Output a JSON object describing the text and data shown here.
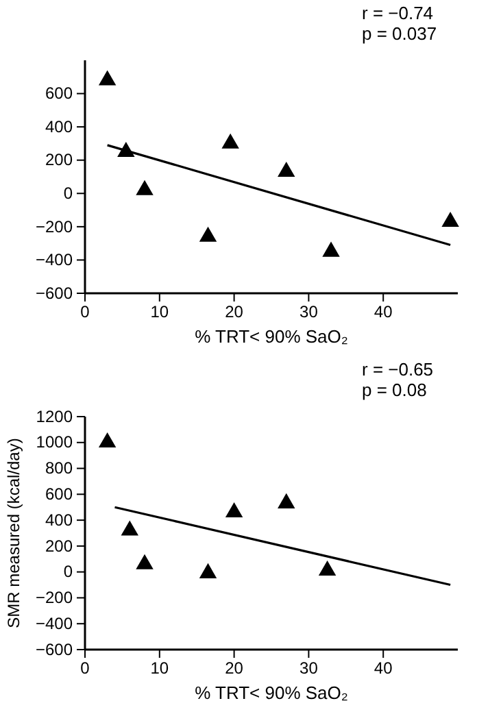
{
  "chart_data": [
    {
      "type": "scatter",
      "xlabel": "% TRT< 90% SaO₂",
      "xlim": [
        0,
        50
      ],
      "xticks": [
        0,
        10,
        20,
        30,
        40
      ],
      "ylim": [
        -600,
        800
      ],
      "yticks": [
        -600,
        -400,
        -200,
        0,
        200,
        400,
        600
      ],
      "annotations": [
        "r = −0.74",
        "p = 0.037"
      ],
      "series": [
        {
          "color": "#000000",
          "marker": "triangle",
          "x": [
            3,
            5.5,
            8,
            16.5,
            19.5,
            27,
            33,
            49
          ],
          "values": [
            680,
            250,
            20,
            -260,
            300,
            130,
            -350,
            -170
          ]
        },
        {
          "type": "line",
          "color": "#000000",
          "marker": "none",
          "x": [
            3,
            49
          ],
          "values": [
            290,
            -310
          ]
        }
      ]
    },
    {
      "type": "scatter",
      "ylabel": "SMR measured (kcal/day)",
      "xlabel": "% TRT< 90% SaO₂",
      "xlim": [
        0,
        50
      ],
      "xticks": [
        0,
        10,
        20,
        30,
        40
      ],
      "ylim": [
        -600,
        1200
      ],
      "yticks": [
        -600,
        -400,
        -200,
        0,
        200,
        400,
        600,
        800,
        1000,
        1200
      ],
      "annotations": [
        "r = −0.65",
        "p = 0.08"
      ],
      "series": [
        {
          "color": "#000000",
          "marker": "triangle",
          "x": [
            3,
            6,
            8,
            16.5,
            20,
            27,
            32.5
          ],
          "values": [
            1000,
            320,
            60,
            -10,
            460,
            530,
            10
          ]
        },
        {
          "type": "line",
          "color": "#000000",
          "marker": "none",
          "x": [
            4,
            49
          ],
          "values": [
            500,
            -100
          ]
        }
      ]
    }
  ]
}
